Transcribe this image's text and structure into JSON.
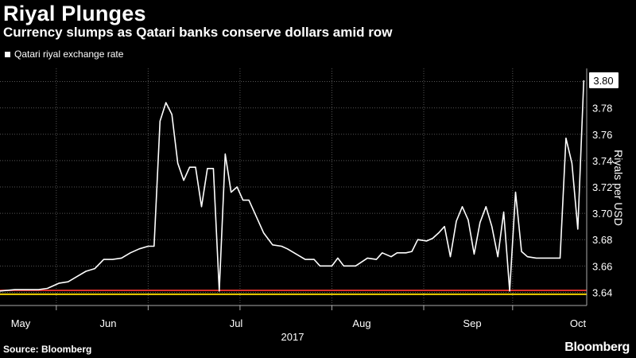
{
  "chart_data": {
    "type": "line",
    "title": "Riyal Plunges",
    "subtitle": "Currency slumps as Qatari banks conserve dollars amid row",
    "legend": "Qatari riyal exchange rate",
    "ylabel": "Riyals per USD",
    "xlabel_year": "2017",
    "ylim": [
      3.63,
      3.81
    ],
    "yticks": [
      "3.64",
      "3.66",
      "3.68",
      "3.70",
      "3.72",
      "3.74",
      "3.76",
      "3.78",
      "3.80"
    ],
    "xticks": [
      {
        "label": "May",
        "date": "2017-05-01"
      },
      {
        "label": "Jun",
        "date": "2017-06-01"
      },
      {
        "label": "Jul",
        "date": "2017-07-01"
      },
      {
        "label": "Aug",
        "date": "2017-08-01"
      },
      {
        "label": "Sep",
        "date": "2017-09-01"
      },
      {
        "label": "Oct",
        "date": "2017-10-01"
      }
    ],
    "last_value_label": "3.80",
    "reference_lines": [
      {
        "value": 3.6415,
        "color": "#e0302b"
      },
      {
        "value": 3.6385,
        "color": "#f0d000"
      }
    ],
    "series": [
      {
        "color": "#ffffff",
        "points": [
          [
            "2017-04-26",
            3.641
          ],
          [
            "2017-05-01",
            3.642
          ],
          [
            "2017-05-05",
            3.642
          ],
          [
            "2017-05-09",
            3.642
          ],
          [
            "2017-05-12",
            3.643
          ],
          [
            "2017-05-16",
            3.647
          ],
          [
            "2017-05-19",
            3.648
          ],
          [
            "2017-05-22",
            3.652
          ],
          [
            "2017-05-25",
            3.656
          ],
          [
            "2017-05-28",
            3.658
          ],
          [
            "2017-05-31",
            3.665
          ],
          [
            "2017-06-03",
            3.665
          ],
          [
            "2017-06-06",
            3.666
          ],
          [
            "2017-06-09",
            3.67
          ],
          [
            "2017-06-12",
            3.673
          ],
          [
            "2017-06-15",
            3.675
          ],
          [
            "2017-06-17",
            3.675
          ],
          [
            "2017-06-19",
            3.77
          ],
          [
            "2017-06-21",
            3.784
          ],
          [
            "2017-06-23",
            3.775
          ],
          [
            "2017-06-25",
            3.738
          ],
          [
            "2017-06-27",
            3.725
          ],
          [
            "2017-06-29",
            3.735
          ],
          [
            "2017-07-01",
            3.735
          ],
          [
            "2017-07-03",
            3.705
          ],
          [
            "2017-07-05",
            3.734
          ],
          [
            "2017-07-07",
            3.734
          ],
          [
            "2017-07-09",
            3.641
          ],
          [
            "2017-07-11",
            3.745
          ],
          [
            "2017-07-13",
            3.716
          ],
          [
            "2017-07-15",
            3.72
          ],
          [
            "2017-07-17",
            3.71
          ],
          [
            "2017-07-19",
            3.71
          ],
          [
            "2017-07-22",
            3.695
          ],
          [
            "2017-07-24",
            3.685
          ],
          [
            "2017-07-27",
            3.676
          ],
          [
            "2017-07-30",
            3.675
          ],
          [
            "2017-08-01",
            3.673
          ],
          [
            "2017-08-04",
            3.669
          ],
          [
            "2017-08-07",
            3.665
          ],
          [
            "2017-08-10",
            3.665
          ],
          [
            "2017-08-12",
            3.66
          ],
          [
            "2017-08-16",
            3.66
          ],
          [
            "2017-08-18",
            3.666
          ],
          [
            "2017-08-20",
            3.66
          ],
          [
            "2017-08-24",
            3.66
          ],
          [
            "2017-08-28",
            3.666
          ],
          [
            "2017-08-31",
            3.665
          ],
          [
            "2017-09-02",
            3.67
          ],
          [
            "2017-09-05",
            3.667
          ],
          [
            "2017-09-07",
            3.67
          ],
          [
            "2017-09-10",
            3.67
          ],
          [
            "2017-09-12",
            3.671
          ],
          [
            "2017-09-14",
            3.68
          ],
          [
            "2017-09-17",
            3.679
          ],
          [
            "2017-09-19",
            3.681
          ],
          [
            "2017-09-21",
            3.685
          ],
          [
            "2017-09-23",
            3.69
          ],
          [
            "2017-09-25",
            3.667
          ],
          [
            "2017-09-27",
            3.694
          ],
          [
            "2017-09-29",
            3.705
          ],
          [
            "2017-10-01",
            3.695
          ],
          [
            "2017-10-03",
            3.669
          ],
          [
            "2017-10-05",
            3.693
          ],
          [
            "2017-10-07",
            3.705
          ],
          [
            "2017-10-09",
            3.69
          ],
          [
            "2017-10-11",
            3.667
          ],
          [
            "2017-10-13",
            3.701
          ],
          [
            "2017-10-15",
            3.641
          ],
          [
            "2017-10-17",
            3.716
          ],
          [
            "2017-10-19",
            3.671
          ],
          [
            "2017-10-21",
            3.667
          ],
          [
            "2017-10-24",
            3.666
          ],
          [
            "2017-10-27",
            3.666
          ],
          [
            "2017-10-30",
            3.666
          ],
          [
            "2017-11-01",
            3.666
          ],
          [
            "2017-11-03",
            3.757
          ],
          [
            "2017-11-05",
            3.738
          ],
          [
            "2017-11-07",
            3.688
          ],
          [
            "2017-11-09",
            3.801
          ]
        ]
      }
    ]
  },
  "footer": {
    "source": "Source: Bloomberg",
    "brand": "Bloomberg"
  }
}
